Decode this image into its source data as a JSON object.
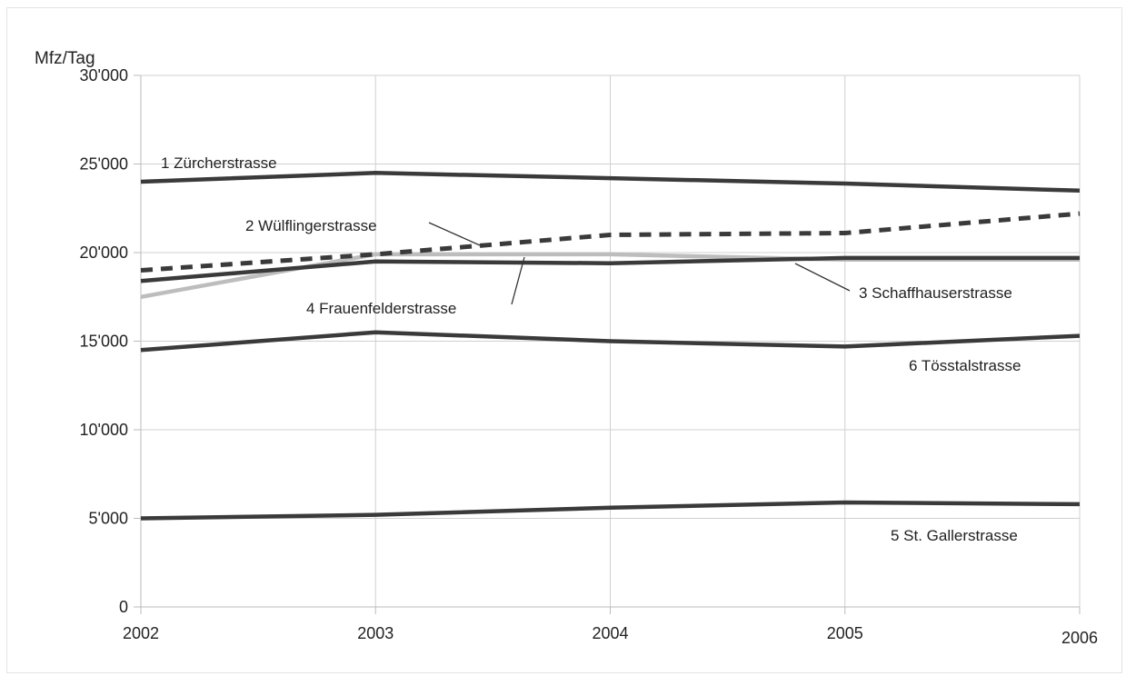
{
  "chart_data": {
    "type": "line",
    "title": "",
    "xlabel": "",
    "ylabel": "Mfz/Tag",
    "x": [
      "2002",
      "2003",
      "2004",
      "2005",
      "2006"
    ],
    "ylim": [
      0,
      30000
    ],
    "y_ticks": [
      0,
      5000,
      10000,
      15000,
      20000,
      25000,
      30000
    ],
    "y_tick_labels": [
      "0",
      "5'000",
      "10'000",
      "15'000",
      "20'000",
      "25'000",
      "30'000"
    ],
    "grid": true,
    "colors": {
      "dark": "#3a3a3a",
      "light": "#bdbdbd",
      "grid": "#d0d0d0",
      "axis": "#bbbbbb"
    },
    "series": [
      {
        "id": "s1",
        "name": "1  Zürcherstrasse",
        "values": [
          24000,
          24500,
          24200,
          23900,
          23500
        ],
        "color": "#3a3a3a",
        "dashed": false
      },
      {
        "id": "s2",
        "name": "2  Wülflingerstrasse",
        "values": [
          19000,
          19900,
          21000,
          21100,
          22200
        ],
        "color": "#3a3a3a",
        "dashed": true
      },
      {
        "id": "s3",
        "name": "3 Schaffhauserstrasse",
        "values": [
          18400,
          19500,
          19400,
          19700,
          19700
        ],
        "color": "#3a3a3a",
        "dashed": false
      },
      {
        "id": "s4",
        "name": "4  Frauenfelderstrasse",
        "values": [
          17500,
          19900,
          19900,
          19600,
          19600
        ],
        "color": "#bdbdbd",
        "dashed": false
      },
      {
        "id": "s6",
        "name": "6  Tösstalstrasse",
        "values": [
          14500,
          15500,
          15000,
          14700,
          15300
        ],
        "color": "#3a3a3a",
        "dashed": false
      },
      {
        "id": "s5",
        "name": "5  St. Gallerstrasse",
        "values": [
          5000,
          5200,
          5600,
          5900,
          5800
        ],
        "color": "#3a3a3a",
        "dashed": false
      }
    ]
  }
}
